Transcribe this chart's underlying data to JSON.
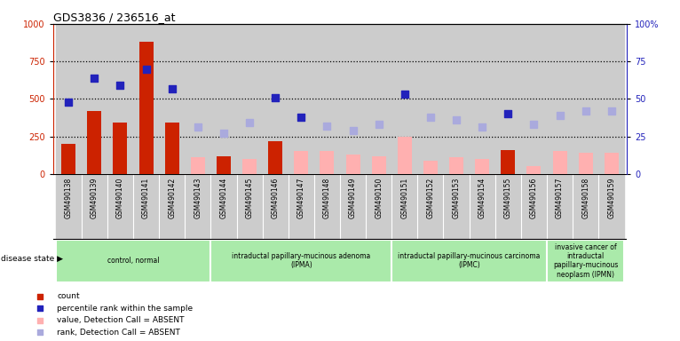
{
  "title": "GDS3836 / 236516_at",
  "samples": [
    "GSM490138",
    "GSM490139",
    "GSM490140",
    "GSM490141",
    "GSM490142",
    "GSM490143",
    "GSM490144",
    "GSM490145",
    "GSM490146",
    "GSM490147",
    "GSM490148",
    "GSM490149",
    "GSM490150",
    "GSM490151",
    "GSM490152",
    "GSM490153",
    "GSM490154",
    "GSM490155",
    "GSM490156",
    "GSM490157",
    "GSM490158",
    "GSM490159"
  ],
  "count_present": [
    200,
    420,
    340,
    880,
    340,
    0,
    120,
    0,
    220,
    0,
    0,
    0,
    0,
    0,
    0,
    0,
    0,
    160,
    0,
    0,
    0,
    0
  ],
  "count_absent": [
    0,
    0,
    0,
    0,
    0,
    110,
    0,
    100,
    0,
    150,
    150,
    130,
    120,
    250,
    90,
    110,
    100,
    0,
    50,
    150,
    140,
    140
  ],
  "rank_present": [
    480,
    640,
    590,
    700,
    570,
    0,
    0,
    0,
    510,
    380,
    0,
    0,
    0,
    530,
    0,
    0,
    0,
    400,
    0,
    0,
    0,
    0
  ],
  "rank_absent": [
    0,
    0,
    0,
    0,
    0,
    310,
    270,
    340,
    0,
    0,
    320,
    290,
    330,
    0,
    380,
    360,
    310,
    0,
    330,
    390,
    420,
    420
  ],
  "ylim": [
    0,
    1000
  ],
  "y2lim": [
    0,
    100
  ],
  "yticks_left": [
    0,
    250,
    500,
    750,
    1000
  ],
  "yticks_right": [
    0,
    25,
    50,
    75,
    100
  ],
  "group_names": [
    "control, normal",
    "intraductal papillary-mucinous adenoma\n(IPMA)",
    "intraductal papillary-mucinous carcinoma\n(IPMC)",
    "invasive cancer of\nintraductal\npapillary-mucinous\nneoplasm (IPMN)"
  ],
  "group_ranges": [
    [
      0,
      6
    ],
    [
      6,
      13
    ],
    [
      13,
      19
    ],
    [
      19,
      22
    ]
  ],
  "color_red": "#cc2200",
  "color_pink": "#ffb0b0",
  "color_blue": "#2222bb",
  "color_lightblue": "#aaaadd",
  "color_col_bg": "#cccccc",
  "color_group_bg": "#aaeaaa",
  "color_white": "#ffffff"
}
